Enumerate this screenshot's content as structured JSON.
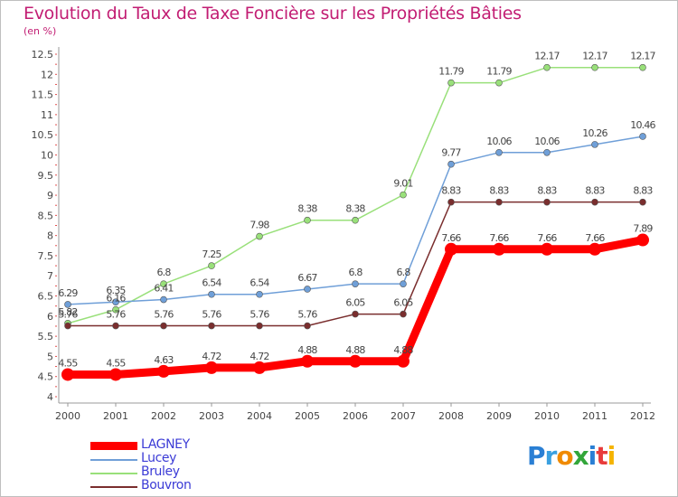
{
  "chart_data": {
    "type": "line",
    "title": "Evolution du Taux de Taxe Foncière sur les Propriétés Bâties",
    "unit_label": "(en %)",
    "xlabel": "",
    "ylabel": "",
    "ylim": [
      4,
      12.5
    ],
    "y_ticks": [
      "4",
      "4.5",
      "5",
      "5.5",
      "6",
      "6.5",
      "7",
      "7.5",
      "8",
      "8.5",
      "9",
      "9.5",
      "10",
      "10.5",
      "11",
      "11.5",
      "12",
      "12.5"
    ],
    "categories": [
      "2000",
      "2001",
      "2002",
      "2003",
      "2004",
      "2005",
      "2006",
      "2007",
      "2008",
      "2009",
      "2010",
      "2011",
      "2012"
    ],
    "series": [
      {
        "name": "LAGNEY",
        "color": "#ff0000",
        "values": [
          4.55,
          4.55,
          4.63,
          4.72,
          4.72,
          4.88,
          4.88,
          4.88,
          7.66,
          7.66,
          7.66,
          7.66,
          7.89
        ],
        "labels": [
          "4.55",
          "4.55",
          "4.63",
          "4.72",
          "4.72",
          "4.88",
          "4.88",
          "4.88",
          "7.66",
          "7.66",
          "7.66",
          "7.66",
          "7.89"
        ]
      },
      {
        "name": "Lucey",
        "color": "#6f9fd8",
        "values": [
          6.29,
          6.35,
          6.41,
          6.54,
          6.54,
          6.67,
          6.8,
          6.8,
          9.77,
          10.06,
          10.06,
          10.26,
          10.46
        ],
        "labels": [
          "6.29",
          "6.35",
          "6.41",
          "6.54",
          "6.54",
          "6.67",
          "6.8",
          "6.8",
          "9.77",
          "10.06",
          "10.06",
          "10.26",
          "10.46"
        ]
      },
      {
        "name": "Bruley",
        "color": "#99e07a",
        "values": [
          5.82,
          6.16,
          6.8,
          7.25,
          7.98,
          8.38,
          8.38,
          9.01,
          11.79,
          11.79,
          12.17,
          12.17,
          12.17
        ],
        "labels": [
          "5.82",
          "6.16",
          "6.8",
          "7.25",
          "7.98",
          "8.38",
          "8.38",
          "9.01",
          "11.79",
          "11.79",
          "12.17",
          "12.17",
          "12.17"
        ]
      },
      {
        "name": "Bouvron",
        "color": "#7a2e2e",
        "values": [
          5.76,
          5.76,
          5.76,
          5.76,
          5.76,
          5.76,
          6.05,
          6.05,
          8.83,
          8.83,
          8.83,
          8.83,
          8.83
        ],
        "labels": [
          "5.76",
          "5.76",
          "5.76",
          "5.76",
          "5.76",
          "5.76",
          "6.05",
          "6.05",
          "8.83",
          "8.83",
          "8.83",
          "8.83",
          "8.83"
        ]
      }
    ],
    "legend": "bottom-left",
    "grid": false
  },
  "logo": {
    "letters": [
      "P",
      "r",
      "o",
      "x",
      "i",
      "t",
      "i"
    ],
    "colors": [
      "#2a7fd4",
      "#3aa0e0",
      "#f08a00",
      "#33a63a",
      "#2a7fd4",
      "#e83b3b",
      "#f5b400"
    ]
  }
}
